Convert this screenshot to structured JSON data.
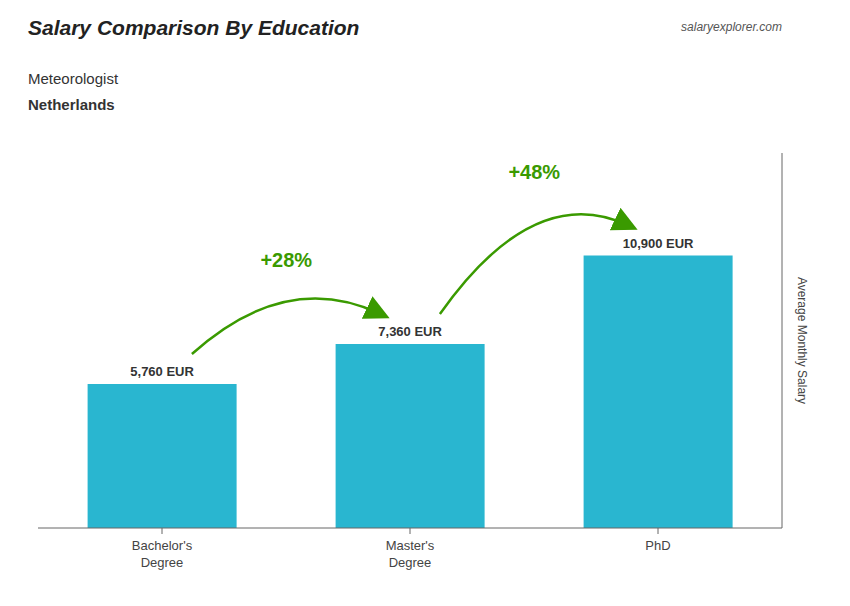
{
  "chart_data": {
    "type": "bar",
    "title": "Salary Comparison By Education",
    "subtitle": "Meteorologist",
    "annotations": [
      "Netherlands",
      "salaryexplorer.com",
      "+28%",
      "+48%"
    ],
    "y_label": "Average Monthly Salary",
    "categories": [
      "Bachelor's\nDegree",
      "Master's\nDegree",
      "PhD"
    ],
    "values": [
      5760,
      7360,
      10900
    ],
    "value_labels": [
      "5,760 EUR",
      "7,360 EUR",
      "10,900 EUR"
    ],
    "data_labels": true,
    "color": "#29b6d0",
    "ylim": [
      0,
      15000
    ],
    "yticks": [],
    "grid": false,
    "tick_labels": "x"
  }
}
